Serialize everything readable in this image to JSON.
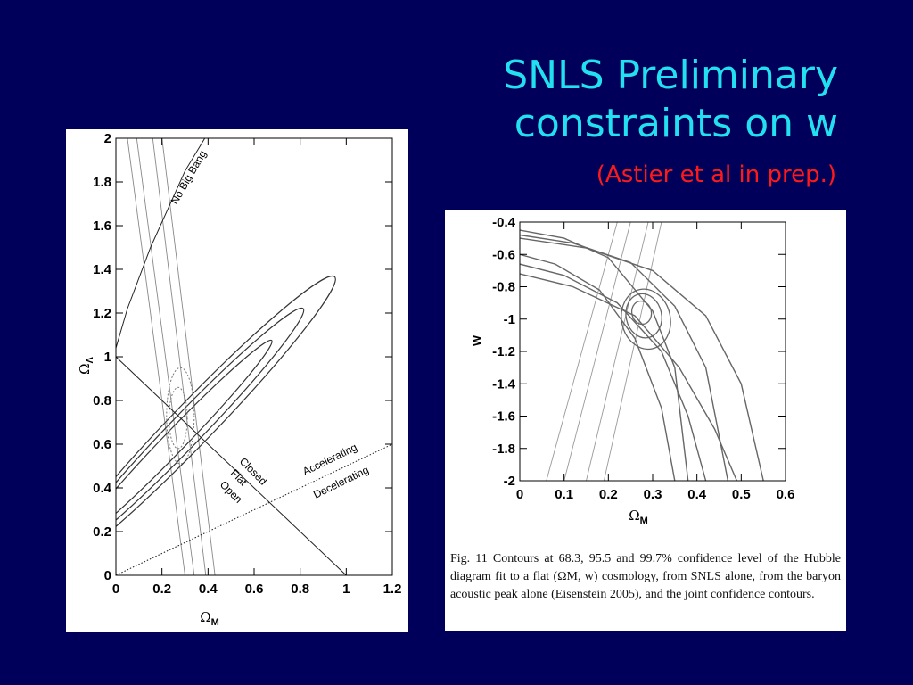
{
  "slide": {
    "title_line1": "SNLS Preliminary",
    "title_line2": "constraints on w",
    "subtitle": "(Astier et al in prep.)",
    "colors": {
      "background": "#00005a",
      "title": "#22e0f0",
      "subtitle": "#ff1a1a"
    }
  },
  "chart_data": [
    {
      "type": "line",
      "title": "",
      "xlabel": "ΩM",
      "ylabel": "ΩΛ",
      "xlim": [
        0,
        1.2
      ],
      "ylim": [
        0,
        2
      ],
      "x_ticks": [
        "0",
        "0.2",
        "0.4",
        "0.6",
        "0.8",
        "1",
        "1.2"
      ],
      "y_ticks": [
        "0",
        "0.2",
        "0.4",
        "0.6",
        "0.8",
        "1",
        "1.2",
        "1.4",
        "1.6",
        "1.8",
        "2"
      ],
      "annotations": {
        "no_big_bang": "No Big Bang",
        "accelerating": "Accelerating",
        "decelerating": "Decelerating",
        "closed": "Closed",
        "flat": "Flat",
        "open": "Open"
      },
      "reference_lines": [
        {
          "name": "flat",
          "points": [
            [
              0,
              1
            ],
            [
              1,
              0
            ]
          ]
        },
        {
          "name": "accel-decel",
          "points": [
            [
              0,
              0
            ],
            [
              1.2,
              0.6
            ]
          ]
        },
        {
          "name": "no-big-bang",
          "points": [
            [
              0,
              1.04
            ],
            [
              0.05,
              1.22
            ],
            [
              0.15,
              1.5
            ],
            [
              0.3,
              1.85
            ],
            [
              0.5,
              2.2
            ]
          ]
        }
      ],
      "snls_contours": [
        {
          "level": "68.3%",
          "center": [
            0.26,
            0.62
          ],
          "a": 0.86,
          "b": 0.068,
          "angle_deg": 46
        },
        {
          "level": "95.5%",
          "center": [
            0.3,
            0.66
          ],
          "a": 1.06,
          "b": 0.1,
          "angle_deg": 46
        },
        {
          "level": "99.7%",
          "center": [
            0.34,
            0.7
          ],
          "a": 1.26,
          "b": 0.13,
          "angle_deg": 46
        }
      ],
      "bao_bands": [
        {
          "points": [
            [
              0.05,
              2
            ],
            [
              0.3,
              0
            ]
          ]
        },
        {
          "points": [
            [
              0.09,
              2
            ],
            [
              0.34,
              0
            ]
          ]
        },
        {
          "points": [
            [
              0.16,
              2
            ],
            [
              0.39,
              0
            ]
          ]
        },
        {
          "points": [
            [
              0.2,
              2
            ],
            [
              0.43,
              0
            ]
          ]
        }
      ],
      "joint_contours": [
        {
          "level": "68.3%",
          "center": [
            0.27,
            0.72
          ],
          "rx": 0.04,
          "ry": 0.14
        },
        {
          "level": "95.5%",
          "center": [
            0.28,
            0.73
          ],
          "rx": 0.06,
          "ry": 0.22
        }
      ]
    },
    {
      "type": "line",
      "title": "",
      "xlabel": "ΩM",
      "ylabel": "w",
      "xlim": [
        0,
        0.6
      ],
      "ylim": [
        -2,
        -0.4
      ],
      "x_ticks": [
        "0",
        "0.1",
        "0.2",
        "0.3",
        "0.4",
        "0.5",
        "0.6"
      ],
      "y_ticks": [
        "-2",
        "-1.8",
        "-1.6",
        "-1.4",
        "-1.2",
        "-1",
        "-0.8",
        "-0.6",
        "-0.4"
      ],
      "snls_bands": [
        {
          "x": [
            0,
            0.1,
            0.2,
            0.3,
            0.35,
            0.38
          ],
          "y": [
            -0.45,
            -0.5,
            -0.62,
            -0.95,
            -1.3,
            -2.0
          ]
        },
        {
          "x": [
            0,
            0.12,
            0.25,
            0.35,
            0.42,
            0.47
          ],
          "y": [
            -0.48,
            -0.53,
            -0.65,
            -0.92,
            -1.3,
            -2.0
          ]
        },
        {
          "x": [
            0,
            0.15,
            0.3,
            0.42,
            0.5,
            0.55
          ],
          "y": [
            -0.5,
            -0.56,
            -0.7,
            -0.98,
            -1.4,
            -2.0
          ]
        },
        {
          "x": [
            0,
            0.08,
            0.18,
            0.26,
            0.32,
            0.35
          ],
          "y": [
            -0.6,
            -0.66,
            -0.82,
            -1.12,
            -1.55,
            -2.0
          ]
        },
        {
          "x": [
            0,
            0.1,
            0.22,
            0.32,
            0.38,
            0.42
          ],
          "y": [
            -0.66,
            -0.73,
            -0.9,
            -1.2,
            -1.6,
            -2.0
          ]
        },
        {
          "x": [
            0,
            0.12,
            0.26,
            0.36,
            0.44,
            0.49
          ],
          "y": [
            -0.72,
            -0.8,
            -0.98,
            -1.3,
            -1.68,
            -2.0
          ]
        }
      ],
      "bao_bands": [
        {
          "points": [
            [
              0.22,
              -0.4
            ],
            [
              0.06,
              -2
            ]
          ]
        },
        {
          "points": [
            [
              0.25,
              -0.4
            ],
            [
              0.1,
              -2
            ]
          ]
        },
        {
          "points": [
            [
              0.29,
              -0.4
            ],
            [
              0.15,
              -2
            ]
          ]
        },
        {
          "points": [
            [
              0.32,
              -0.4
            ],
            [
              0.19,
              -2
            ]
          ]
        }
      ],
      "joint_contours": [
        {
          "level": "68.3%",
          "center": [
            0.275,
            -0.96
          ],
          "rx": 0.022,
          "ry": 0.13
        },
        {
          "level": "95.5%",
          "center": [
            0.28,
            -0.98
          ],
          "rx": 0.04,
          "ry": 0.25
        },
        {
          "level": "99.7%",
          "center": [
            0.285,
            -1.0
          ],
          "rx": 0.055,
          "ry": 0.34
        }
      ],
      "caption": "Fig. 11 Contours at 68.3, 95.5 and 99.7% confidence level of the Hubble diagram fit to a flat (ΩM, w) cosmology, from SNLS alone, from the baryon acoustic peak alone (Eisenstein 2005), and the joint confidence contours."
    }
  ]
}
